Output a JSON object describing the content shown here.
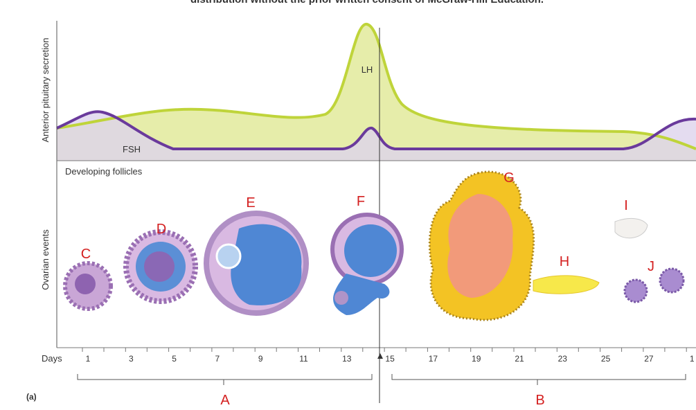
{
  "header": {
    "caption": "distribution without the prior written consent of McGraw-Hill Education."
  },
  "axes": {
    "top_label": "Anterior pituitary secretion",
    "bottom_label": "Ovarian events"
  },
  "hormones": {
    "lh": "LH",
    "fsh": "FSH"
  },
  "section_label": "Developing follicles",
  "days": {
    "label": "Days",
    "ticks": [
      "1",
      "3",
      "5",
      "7",
      "9",
      "11",
      "13",
      "15",
      "17",
      "19",
      "21",
      "23",
      "25",
      "27",
      "1"
    ]
  },
  "labels": [
    "C",
    "D",
    "E",
    "F",
    "G",
    "H",
    "I",
    "J"
  ],
  "phases": [
    "A",
    "B"
  ],
  "panel": "(a)"
}
